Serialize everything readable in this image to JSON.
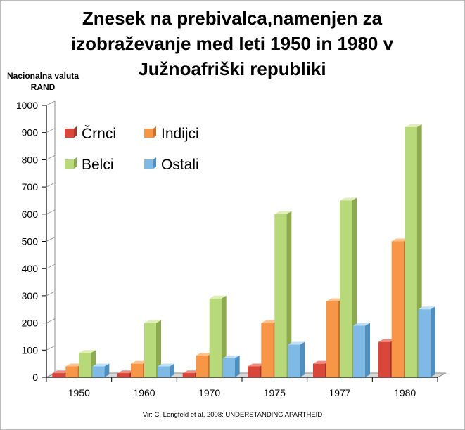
{
  "chart_data": {
    "type": "bar",
    "title_lines": [
      "Znesek na prebivalca,namenjen za",
      "izobraževanje med leti 1950 in 1980 v",
      "Južnoafriški republiki"
    ],
    "ylabel_lines": [
      "Nacionalna valuta",
      "RAND"
    ],
    "xlabel": "",
    "categories": [
      "1950",
      "1960",
      "1970",
      "1975",
      "1977",
      "1980"
    ],
    "series": [
      {
        "name": "Črnci",
        "values": [
          15,
          15,
          15,
          40,
          50,
          130
        ]
      },
      {
        "name": "Indijci",
        "values": [
          40,
          50,
          80,
          200,
          280,
          500
        ]
      },
      {
        "name": "Belci",
        "values": [
          90,
          200,
          290,
          600,
          650,
          920
        ]
      },
      {
        "name": "Ostali",
        "values": [
          40,
          40,
          70,
          120,
          190,
          250
        ]
      }
    ],
    "ylim": [
      0,
      1000
    ],
    "yticks": [
      "0",
      "100",
      "200",
      "300",
      "400",
      "500",
      "600",
      "700",
      "800",
      "900",
      "1000"
    ],
    "legend_position": "top-left",
    "grid": false,
    "source": "Vir: C. Lengfeld et al, 2008: UNDERSTANDING APARTHEID"
  },
  "colors": {
    "Črnci": [
      "#f28b7d",
      "#d9473a",
      "#a93226"
    ],
    "Indijci": [
      "#ffc28a",
      "#f79646",
      "#c9702c"
    ],
    "Belci": [
      "#dff0b7",
      "#b8d97a",
      "#8cab4e"
    ],
    "Ostali": [
      "#bfe0f7",
      "#7fb9e6",
      "#4f8fc0"
    ],
    "axis": "#000000",
    "wall": "#ffffff"
  }
}
